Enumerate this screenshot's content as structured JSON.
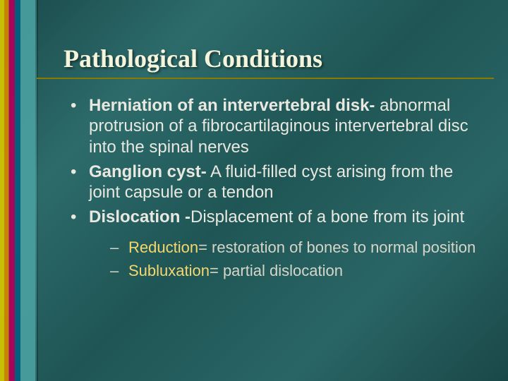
{
  "slide": {
    "title": "Pathological Conditions",
    "background_colors": [
      "#1a4a4a",
      "#2d6b6b",
      "#1f5555",
      "#2a6565",
      "#1a4848"
    ],
    "accent_stripe_colors": [
      "#d4c800",
      "#d48800",
      "#b0005a",
      "#006080",
      "#4aa0a0"
    ],
    "title_color": "#f5f5dc",
    "title_fontsize": 36,
    "title_font": "Times New Roman",
    "rule_color": "#8a7a00",
    "body_color": "#e8e8e0",
    "body_fontsize": 24,
    "sub_color": "#d6d6c8",
    "sub_fontsize": 22,
    "highlight_color": "#f5d76e",
    "bullets": [
      {
        "term": "Herniation of an intervertebral disk-",
        "def": " abnormal protrusion of a fibrocartilaginous intervertebral disc into the spinal nerves"
      },
      {
        "term": "Ganglion cyst-",
        "def": " A fluid-filled cyst arising from the joint capsule or a tendon"
      },
      {
        "term": "Dislocation -",
        "def": "Displacement of a bone from its joint"
      }
    ],
    "sub_bullets": [
      {
        "term": "Reduction",
        "def": "= restoration of bones to normal position"
      },
      {
        "term": "Subluxation",
        "def": "= partial dislocation"
      }
    ]
  }
}
